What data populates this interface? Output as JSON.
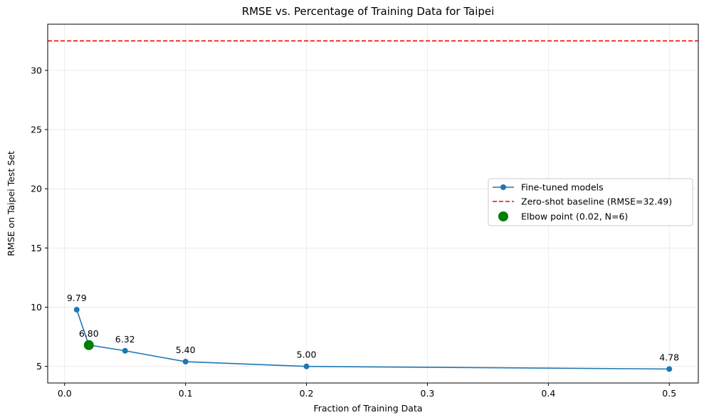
{
  "chart_data": {
    "type": "line",
    "title": "RMSE vs. Percentage of Training Data for Taipei",
    "xlabel": "Fraction of Training Data",
    "ylabel": "RMSE on Taipei Test Set",
    "xlim": [
      -0.014,
      0.524
    ],
    "ylim": [
      3.6,
      33.9
    ],
    "xticks": [
      0.0,
      0.1,
      0.2,
      0.3,
      0.4,
      0.5
    ],
    "xtick_labels": [
      "0.0",
      "0.1",
      "0.2",
      "0.3",
      "0.4",
      "0.5"
    ],
    "yticks": [
      5,
      10,
      15,
      20,
      25,
      30
    ],
    "ytick_labels": [
      "5",
      "10",
      "15",
      "20",
      "25",
      "30"
    ],
    "grid": true,
    "legend_position": "center-right",
    "series": [
      {
        "name": "Fine-tuned models",
        "color": "#1f77b4",
        "x": [
          0.01,
          0.02,
          0.05,
          0.1,
          0.2,
          0.5
        ],
        "y": [
          9.79,
          6.8,
          6.32,
          5.4,
          5.0,
          4.78
        ],
        "labels": [
          "9.79",
          "6.80",
          "6.32",
          "5.40",
          "5.00",
          "4.78"
        ]
      }
    ],
    "baseline": {
      "name": "Zero-shot baseline (RMSE=32.49)",
      "value": 32.49,
      "color": "#ff0000"
    },
    "highlight": {
      "name": "Elbow point (0.02, N=6)",
      "x": 0.02,
      "y": 6.8,
      "color": "#008000"
    }
  }
}
